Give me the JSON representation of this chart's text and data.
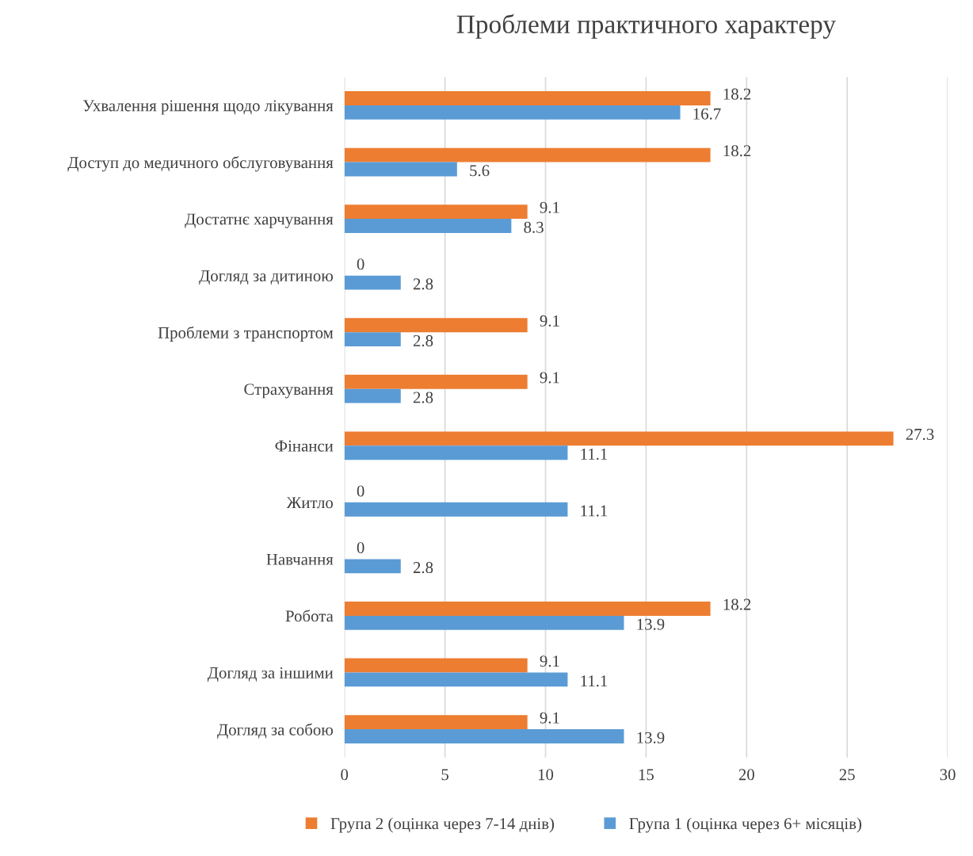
{
  "chart_data": {
    "type": "bar",
    "orientation": "horizontal",
    "title": "Проблеми практичного характеру",
    "categories": [
      "Ухвалення рішення щодо лікування",
      "Доступ до медичного обслуговування",
      "Достатнє харчування",
      "Догляд за дитиною",
      "Проблеми з транспортом",
      "Страхування",
      "Фінанси",
      "Житло",
      "Навчання",
      "Робота",
      "Догляд за іншими",
      "Догляд за собою"
    ],
    "series": [
      {
        "name": "Група 2 (оцінка через 7-14 днів)",
        "color": "#ed7d31",
        "values": [
          18.2,
          18.2,
          9.1,
          0,
          9.1,
          9.1,
          27.3,
          0,
          0,
          18.2,
          9.1,
          9.1
        ]
      },
      {
        "name": "Група 1 (оцінка через 6+ місяців)",
        "color": "#5b9bd5",
        "values": [
          16.7,
          5.6,
          8.3,
          2.8,
          2.8,
          2.8,
          11.1,
          11.1,
          2.8,
          13.9,
          11.1,
          13.9
        ]
      }
    ],
    "xlim": [
      0,
      30
    ],
    "xticks": [
      0,
      5,
      10,
      15,
      20,
      25,
      30
    ],
    "grid": "x",
    "legend": "bottom",
    "data_labels": true
  }
}
